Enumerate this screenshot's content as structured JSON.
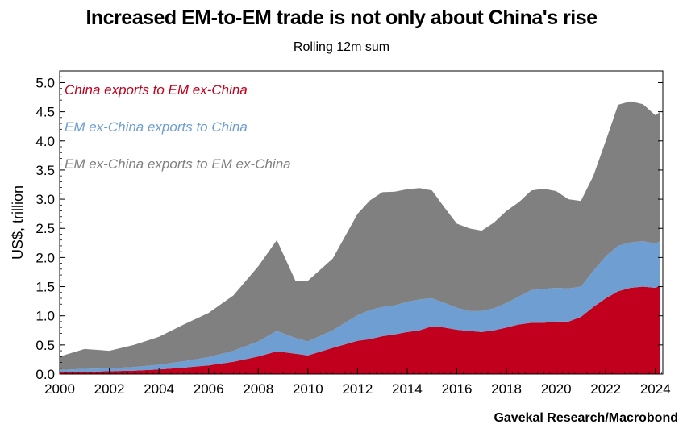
{
  "chart_data": {
    "type": "area",
    "stacked": true,
    "title": "Increased EM-to-EM trade is not only about China's rise",
    "subtitle": "Rolling 12m sum",
    "ylabel": "US$, trillion",
    "xlabel": "",
    "ylim": [
      0,
      5.2
    ],
    "xlim": [
      2000,
      2024.3
    ],
    "yticks": [
      "0.0",
      "0.5",
      "1.0",
      "1.5",
      "2.0",
      "2.5",
      "3.0",
      "3.5",
      "4.0",
      "4.5",
      "5.0"
    ],
    "xticks": [
      "2000",
      "2002",
      "2004",
      "2006",
      "2008",
      "2010",
      "2012",
      "2014",
      "2016",
      "2018",
      "2020",
      "2022",
      "2024"
    ],
    "source": "Gavekal Research/Macrobond",
    "legend_position": "top-left, inside plot",
    "x": [
      2000.0,
      2001.0,
      2002.0,
      2003.0,
      2004.0,
      2005.0,
      2006.0,
      2007.0,
      2008.0,
      2008.75,
      2009.5,
      2010.0,
      2011.0,
      2012.0,
      2012.5,
      2013.0,
      2013.5,
      2014.0,
      2014.5,
      2015.0,
      2015.5,
      2016.0,
      2016.5,
      2017.0,
      2017.5,
      2018.0,
      2018.5,
      2019.0,
      2019.5,
      2020.0,
      2020.5,
      2021.0,
      2021.5,
      2022.0,
      2022.5,
      2023.0,
      2023.5,
      2024.0,
      2024.2
    ],
    "series": [
      {
        "name": "China exports to EM ex-China",
        "color": "#c0001c",
        "values": [
          0.03,
          0.04,
          0.05,
          0.06,
          0.08,
          0.11,
          0.15,
          0.21,
          0.3,
          0.39,
          0.35,
          0.32,
          0.45,
          0.57,
          0.6,
          0.65,
          0.68,
          0.72,
          0.75,
          0.82,
          0.8,
          0.76,
          0.74,
          0.72,
          0.75,
          0.8,
          0.85,
          0.88,
          0.88,
          0.9,
          0.9,
          0.98,
          1.15,
          1.3,
          1.42,
          1.48,
          1.5,
          1.48,
          1.52
        ]
      },
      {
        "name": "EM ex-China exports to China",
        "color": "#6e9ed2",
        "values": [
          0.04,
          0.05,
          0.05,
          0.06,
          0.08,
          0.11,
          0.14,
          0.19,
          0.26,
          0.35,
          0.27,
          0.24,
          0.3,
          0.44,
          0.5,
          0.5,
          0.5,
          0.52,
          0.53,
          0.48,
          0.42,
          0.38,
          0.34,
          0.36,
          0.38,
          0.42,
          0.48,
          0.56,
          0.58,
          0.58,
          0.57,
          0.52,
          0.62,
          0.72,
          0.78,
          0.78,
          0.78,
          0.76,
          0.76
        ]
      },
      {
        "name": "EM ex-China exports to EM ex-China",
        "color": "#808080",
        "values": [
          0.23,
          0.34,
          0.3,
          0.38,
          0.48,
          0.63,
          0.76,
          0.95,
          1.29,
          1.56,
          0.98,
          1.04,
          1.23,
          1.74,
          1.88,
          1.97,
          1.95,
          1.93,
          1.91,
          1.85,
          1.64,
          1.44,
          1.42,
          1.38,
          1.47,
          1.58,
          1.62,
          1.71,
          1.72,
          1.66,
          1.53,
          1.47,
          1.63,
          1.98,
          2.42,
          2.42,
          2.35,
          2.2,
          2.22
        ]
      }
    ]
  }
}
